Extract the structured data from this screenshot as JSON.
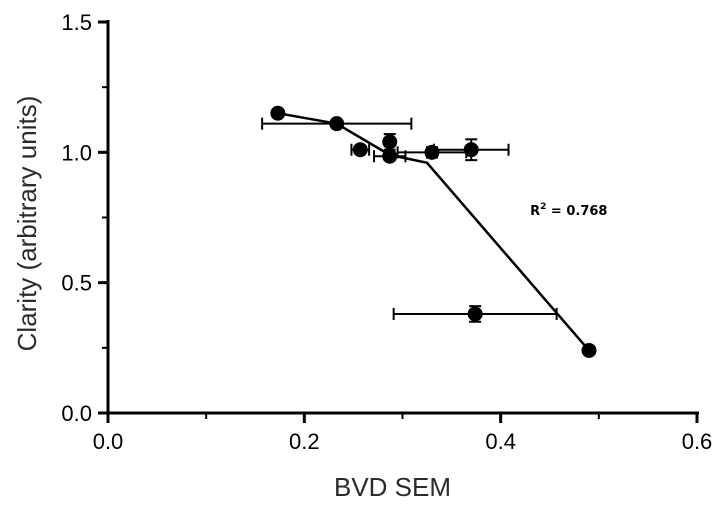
{
  "chart_data": {
    "type": "scatter",
    "title": "",
    "xlabel": "BVD SEM",
    "ylabel": "Clarity (arbitrary units)",
    "xlim": [
      0.0,
      0.6
    ],
    "ylim": [
      0.0,
      1.5
    ],
    "x_ticks": [
      "0.0",
      "0.2",
      "0.4",
      "0.6"
    ],
    "y_ticks": [
      "0.0",
      "0.5",
      "1.0",
      "1.5"
    ],
    "grid": false,
    "points": [
      {
        "x": 0.173,
        "y": 1.15,
        "y_err": 0.01
      },
      {
        "x": 0.233,
        "y": 1.11,
        "x_err": 0.076,
        "y_err": 0.01
      },
      {
        "x": 0.257,
        "y": 1.01,
        "x_err": 0.009,
        "y_err": 0.01
      },
      {
        "x": 0.287,
        "y": 1.04,
        "y_err": 0.03
      },
      {
        "x": 0.287,
        "y": 0.985,
        "x_err": 0.016,
        "y_err": 0.015
      },
      {
        "x": 0.33,
        "y": 1.0,
        "x_err": 0.035,
        "y_err": 0.02
      },
      {
        "x": 0.37,
        "y": 1.01,
        "x_err": 0.038,
        "y_err": 0.04
      },
      {
        "x": 0.374,
        "y": 0.38,
        "x_err": 0.083,
        "y_err": 0.03
      },
      {
        "x": 0.49,
        "y": 0.24,
        "y_err": 0.01
      }
    ],
    "fit_line": [
      {
        "x": 0.173,
        "y": 1.15
      },
      {
        "x": 0.233,
        "y": 1.11
      },
      {
        "x": 0.287,
        "y": 0.99
      },
      {
        "x": 0.325,
        "y": 0.96
      },
      {
        "x": 0.49,
        "y": 0.24
      }
    ],
    "annotation": {
      "text_main": "R",
      "text_sup": "2",
      "text_rest": " = 0.768",
      "x": 0.43,
      "y": 0.76
    }
  }
}
